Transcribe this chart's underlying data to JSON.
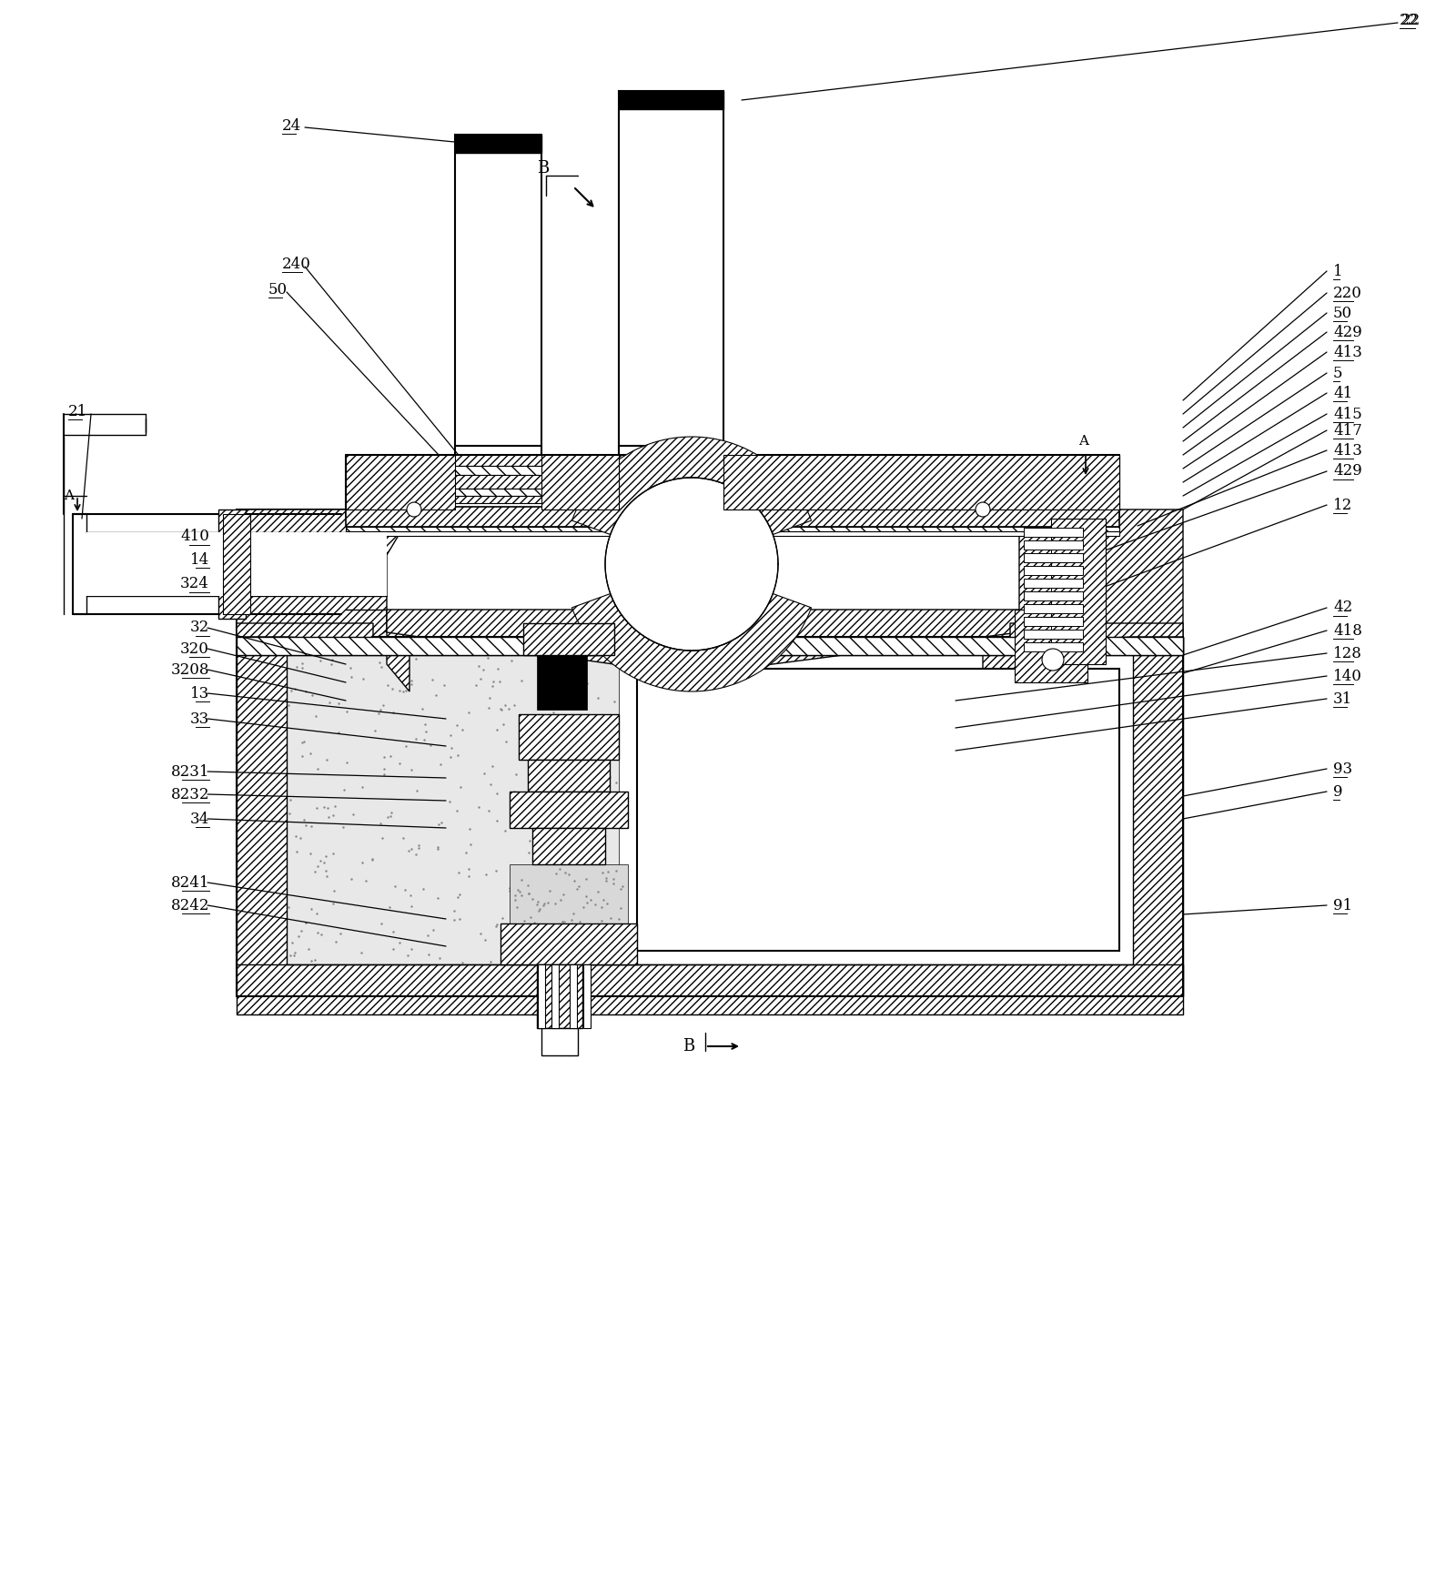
{
  "bg": "#ffffff",
  "lc": "#000000",
  "lw_thin": 0.8,
  "lw_med": 1.3,
  "lw_thick": 2.0,
  "labels_right": [
    [
      "22",
      1535,
      22
    ],
    [
      "1",
      1460,
      298
    ],
    [
      "220",
      1460,
      322
    ],
    [
      "50",
      1460,
      344
    ],
    [
      "429",
      1460,
      365
    ],
    [
      "413",
      1460,
      387
    ],
    [
      "5",
      1460,
      410
    ],
    [
      "41",
      1460,
      432
    ],
    [
      "415",
      1460,
      455
    ],
    [
      "417",
      1460,
      473
    ],
    [
      "413",
      1460,
      495
    ],
    [
      "429",
      1460,
      518
    ],
    [
      "12",
      1460,
      555
    ],
    [
      "42",
      1460,
      668
    ],
    [
      "418",
      1460,
      693
    ],
    [
      "128",
      1460,
      718
    ],
    [
      "140",
      1460,
      743
    ],
    [
      "31",
      1460,
      768
    ],
    [
      "93",
      1460,
      845
    ],
    [
      "9",
      1460,
      870
    ],
    [
      "91",
      1460,
      995
    ]
  ],
  "labels_left": [
    [
      "410",
      230,
      590
    ],
    [
      "14",
      230,
      615
    ],
    [
      "324",
      230,
      642
    ],
    [
      "32",
      230,
      690
    ],
    [
      "320",
      230,
      713
    ],
    [
      "3208",
      230,
      736
    ],
    [
      "13",
      230,
      762
    ],
    [
      "33",
      230,
      790
    ],
    [
      "8231",
      230,
      848
    ],
    [
      "8232",
      230,
      873
    ],
    [
      "34",
      230,
      900
    ],
    [
      "8241",
      230,
      970
    ],
    [
      "8242",
      230,
      995
    ]
  ],
  "labels_upper": [
    [
      "24",
      310,
      138
    ],
    [
      "240",
      310,
      290
    ],
    [
      "50",
      295,
      318
    ],
    [
      "21",
      75,
      452
    ]
  ]
}
